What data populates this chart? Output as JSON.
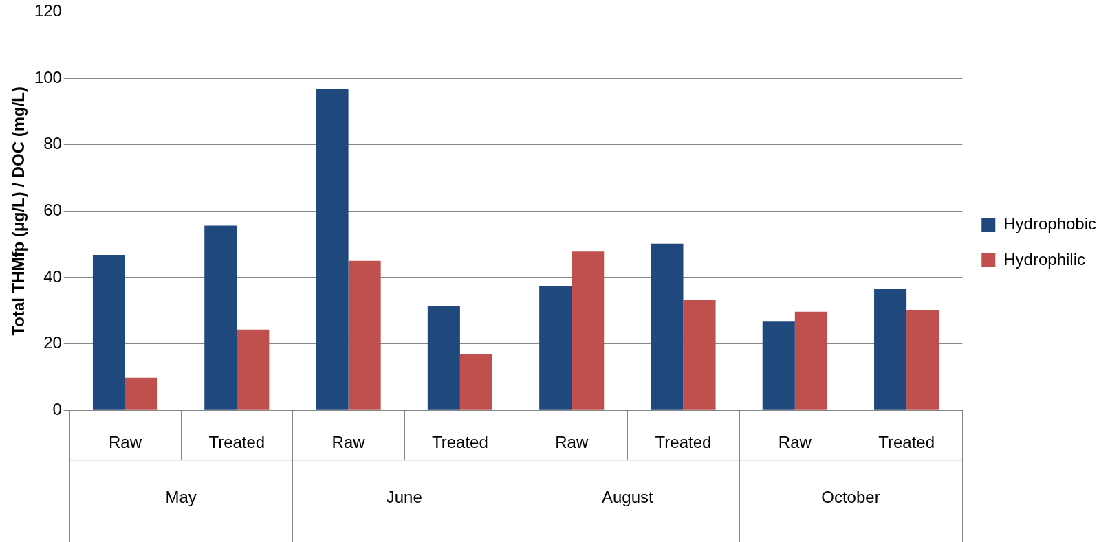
{
  "chart_data": {
    "type": "bar",
    "ylabel": "Total THMfp (µg/L) / DOC (mg/L)",
    "categories": [
      "Raw",
      "Treated",
      "Raw",
      "Treated",
      "Raw",
      "Treated",
      "Raw",
      "Treated"
    ],
    "annotations": [
      "May",
      "June",
      "August",
      "October"
    ],
    "series": [
      {
        "name": "Hydrophobic",
        "color": "#1f497d",
        "values": [
          46.8,
          55.6,
          96.8,
          31.5,
          37.3,
          50.2,
          26.7,
          36.5
        ]
      },
      {
        "name": "Hydrophilic",
        "color": "#c0504d",
        "values": [
          9.8,
          24.3,
          45,
          17,
          47.8,
          33.3,
          29.7,
          30.1
        ]
      }
    ],
    "ylim": [
      0,
      120
    ],
    "yticks": [
      0,
      20,
      40,
      60,
      80,
      100,
      120
    ],
    "grid": "y",
    "legend": "right"
  }
}
